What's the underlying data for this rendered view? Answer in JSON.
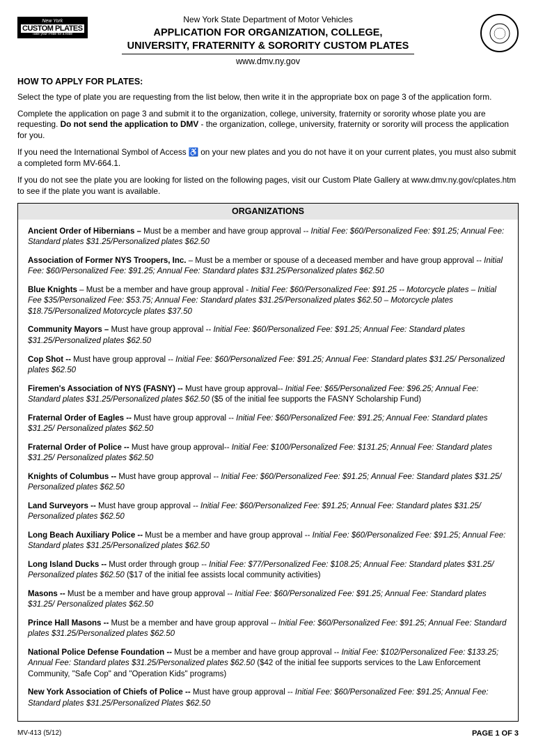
{
  "header": {
    "dept": "New York State Department of Motor Vehicles",
    "title1": "APPLICATION FOR ORGANIZATION, COLLEGE,",
    "title2": "UNIVERSITY, FRATERNITY & SORORITY CUSTOM PLATES",
    "url": "www.dmv.ny.gov",
    "logo_top": "New York",
    "logo_mid": "CUSTOM PLATES",
    "logo_bot": "Take your Pride for a Ride"
  },
  "section_heading": "HOW TO APPLY FOR PLATES:",
  "intro": {
    "p1": "Select the type of plate you are requesting from the list below, then write it in the appropriate box on page 3 of the application form.",
    "p2a": "Complete the application on page 3 and submit it to the organization, college, university, fraternity or sorority whose plate you are requesting. ",
    "p2b_bold": "Do not send the application to DMV",
    "p2c": " - the organization, college, university, fraternity or sorority will process the application for you.",
    "p3a": "If you need the International Symbol of Access ",
    "p3b": " on your new plates and you do not have it on your current plates, you must also submit a completed form MV-664.1.",
    "p4": "If you do not see the plate you are looking for listed on the following pages, visit our Custom Plate Gallery at www.dmv.ny.gov/cplates.htm to see if the plate you want is available."
  },
  "org_header": "ORGANIZATIONS",
  "orgs": [
    {
      "name": "Ancient Order of Hibernians –",
      "req": " Must be a member and have group approval -- ",
      "fees": "Initial Fee: $60/Personalized Fee: $91.25; Annual Fee:  Standard plates $31.25/Personalized plates $62.50"
    },
    {
      "name": "Association of Former NYS Troopers, Inc.",
      "req": " – Must be a member or spouse of a deceased member and have group approval -- ",
      "fees": "Initial Fee: $60/Personalized Fee: $91.25; Annual Fee:  Standard plates $31.25/Personalized plates $62.50"
    },
    {
      "name": "Blue Knights",
      "req": " – Must be a member and have group approval - ",
      "fees": "Initial Fee: $60/Personalized Fee: $91.25 -- Motorcycle plates – Initial Fee $35/Personalized Fee:  $53.75; Annual Fee:  Standard plates $31.25/Personalized plates $62.50 – Motorcycle plates $18.75/Personalized Motorcycle plates $37.50"
    },
    {
      "name": "Community Mayors –",
      "req": " Must have group approval -- ",
      "fees": "Initial Fee: $60/Personalized Fee: $91.25; Annual Fee:  Standard plates $31.25/Personalized plates $62.50"
    },
    {
      "name": "Cop Shot --",
      "req": " Must have group approval -- ",
      "fees": "Initial Fee: $60/Personalized Fee: $91.25; Annual Fee:  Standard plates $31.25/ Personalized plates $62.50"
    },
    {
      "name": "Firemen's Association of NYS (FASNY) --",
      "req": " Must have group approval-- ",
      "fees": "Initial Fee: $65/Personalized Fee: $96.25; Annual Fee:  Standard plates $31.25/Personalized plates $62.50",
      "note": "  ($5 of the initial fee supports the FASNY Scholarship Fund)"
    },
    {
      "name": "Fraternal Order of Eagles --",
      "req": " Must have group approval -- ",
      "fees": "Initial Fee: $60/Personalized Fee: $91.25; Annual Fee:  Standard plates $31.25/ Personalized plates $62.50"
    },
    {
      "name": "Fraternal Order of Police --",
      "req": " Must have group approval-- ",
      "fees": "Initial Fee: $100/Personalized Fee: $131.25; Annual Fee:  Standard plates $31.25/ Personalized plates $62.50"
    },
    {
      "name": "Knights of Columbus --",
      "req": " Must have group approval -- ",
      "fees": "Initial Fee: $60/Personalized Fee: $91.25; Annual Fee:  Standard plates $31.25/ Personalized plates $62.50"
    },
    {
      "name": "Land Surveyors --",
      "req": " Must have group approval -- ",
      "fees": "Initial Fee: $60/Personalized Fee: $91.25; Annual Fee:  Standard plates $31.25/ Personalized plates $62.50"
    },
    {
      "name": "Long Beach Auxiliary Police --",
      "req": " Must be a member and have group approval -- ",
      "fees": "Initial Fee: $60/Personalized Fee: $91.25; Annual Fee:  Standard plates $31.25/Personalized plates $62.50"
    },
    {
      "name": "Long Island Ducks --",
      "req": " Must order through group -- ",
      "fees": "Initial Fee: $77/Personalized Fee: $108.25; Annual Fee:  Standard plates $31.25/ Personalized plates $62.50",
      "note": "  ($17 of the initial fee assists local community activities)"
    },
    {
      "name": "Masons --",
      "req": " Must be a member and have group approval -- ",
      "fees": "Initial Fee: $60/Personalized Fee: $91.25; Annual Fee:  Standard plates $31.25/ Personalized plates $62.50"
    },
    {
      "name": "Prince Hall Masons --",
      "req": " Must be a member and have group approval -- ",
      "fees": "Initial Fee: $60/Personalized Fee: $91.25; Annual Fee:  Standard plates $31.25/Personalized plates $62.50"
    },
    {
      "name": "National Police Defense Foundation --",
      "req": " Must be a member and have group approval -- ",
      "fees": "Initial Fee: $102/Personalized Fee: $133.25; Annual Fee:  Standard plates $31.25/Personalized plates $62.50",
      "note": "  ($42 of the initial fee supports services to the Law Enforcement Community, \"Safe Cop\" and \"Operation Kids\" programs)"
    },
    {
      "name": "New York Association of Chiefs of Police --",
      "req": " Must have group approval -- ",
      "fees": "Initial Fee: $60/Personalized Fee: $91.25;  Annual Fee:  Standard plates $31.25/Personalized Plates $62.50"
    }
  ],
  "footer": {
    "form_id": "MV-413 (5/12)",
    "page": "PAGE 1 OF 3"
  }
}
